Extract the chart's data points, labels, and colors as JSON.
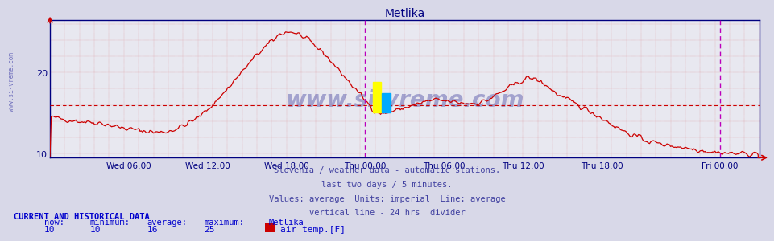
{
  "title": "Metlika",
  "title_color": "#000080",
  "bg_color": "#d8d8e8",
  "plot_bg_color": "#e8e8f0",
  "line_color": "#cc0000",
  "avg_line_color": "#cc0000",
  "avg_line_value": 16,
  "vline_color": "#bb00bb",
  "ylim": [
    9.5,
    26.5
  ],
  "yticks": [
    10,
    20
  ],
  "ylabel_color": "#000080",
  "xticklabels": [
    "Wed 06:00",
    "Wed 12:00",
    "Wed 18:00",
    "Thu 00:00",
    "Thu 06:00",
    "Thu 12:00",
    "Thu 18:00",
    "Fri 00:00"
  ],
  "xtick_positions": [
    0.1111,
    0.2222,
    0.3333,
    0.4444,
    0.5556,
    0.6667,
    0.7778,
    0.9444
  ],
  "xlabel_color": "#000080",
  "watermark": "www.si-vreme.com",
  "watermark_color": "#000080",
  "watermark_alpha": 0.3,
  "subtitle1": "Slovenia / weather data - automatic stations.",
  "subtitle2": "last two days / 5 minutes.",
  "subtitle3": "Values: average  Units: imperial  Line: average",
  "subtitle4": "vertical line - 24 hrs  divider",
  "subtitle_color": "#4040a0",
  "footer_label": "CURRENT AND HISTORICAL DATA",
  "footer_color": "#0000cc",
  "now_val": "10",
  "min_val": "10",
  "avg_val": "16",
  "max_val": "25",
  "station": "Metlika",
  "series_label": "air temp.[F]",
  "legend_color": "#cc0000",
  "sidewater": "www.si-vreme.com"
}
